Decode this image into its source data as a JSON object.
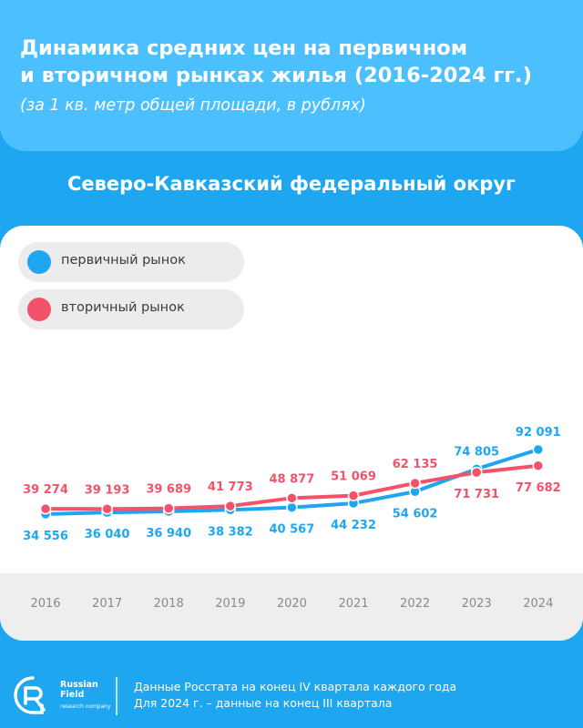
{
  "header": {
    "title_line1": "Динамика средних цен на первичном",
    "title_line2": "и вторичном рынках жилья (2016-2024 гг.)",
    "subtitle": "(за 1 кв. метр общей площади, в рублях)"
  },
  "region": "Северо-Кавказский федеральный округ",
  "legend": [
    {
      "label": "первичный рынок",
      "color": "#1ea7f0"
    },
    {
      "label": "вторичный рынок",
      "color": "#f2526a"
    }
  ],
  "chart_data": {
    "type": "line",
    "x": [
      "2016",
      "2017",
      "2018",
      "2019",
      "2020",
      "2021",
      "2022",
      "2023",
      "2024"
    ],
    "series": [
      {
        "name": "первичный рынок",
        "color": "#1ea7f0",
        "values": [
          34556,
          36040,
          36940,
          38382,
          40567,
          44232,
          54602,
          74805,
          92091
        ],
        "labels": [
          "34 556",
          "36 040",
          "36 940",
          "38 382",
          "40 567",
          "44 232",
          "54 602",
          "74 805",
          "92 091"
        ]
      },
      {
        "name": "вторичный рынок",
        "color": "#f2526a",
        "values": [
          39274,
          39193,
          39689,
          41773,
          48877,
          51069,
          62135,
          71731,
          77682
        ],
        "labels": [
          "39 274",
          "39 193",
          "39 689",
          "41 773",
          "48 877",
          "51 069",
          "62 135",
          "71 731",
          "77 682"
        ]
      }
    ],
    "legend_position": "top-left",
    "grid": false
  },
  "footer": {
    "brand_line1": "Russian",
    "brand_line2": "Field",
    "brand_sub": "research company",
    "note_line1": "Данные Росстата на конец IV квартала каждого года",
    "note_line2": "Для 2024 г. – данные на конец III квартала"
  }
}
